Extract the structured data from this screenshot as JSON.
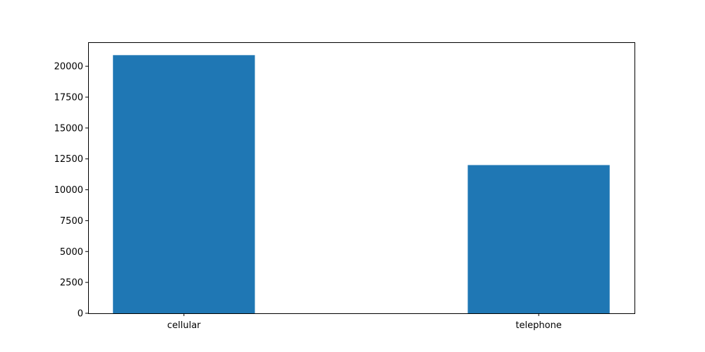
{
  "chart_data": {
    "type": "bar",
    "categories": [
      "cellular",
      "telephone"
    ],
    "values": [
      20900,
      12000
    ],
    "yticks": [
      0,
      2500,
      5000,
      7500,
      10000,
      12500,
      15000,
      17500,
      20000
    ],
    "ylim": [
      0,
      21945
    ],
    "grid": false,
    "colors": {
      "bar": "#1f77b4"
    }
  }
}
